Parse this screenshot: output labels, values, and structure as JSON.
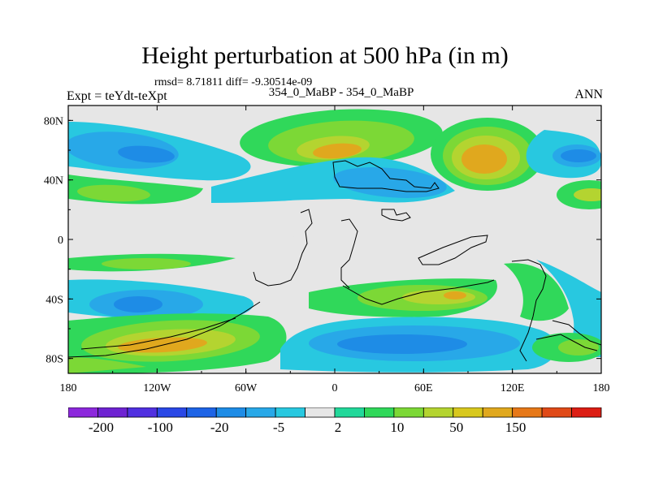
{
  "chart_data": {
    "type": "contour-map",
    "title": "Height perturbation at 500 hPa (in m)",
    "stats_text": "rmsd= 8.71811 diff= -9.30514e-09",
    "left_label": "Expt = teYdt-teXpt",
    "center_label": "354_0_MaBP - 354_0_MaBP",
    "right_label": "ANN",
    "x_ticks": [
      "180",
      "120W",
      "60W",
      "0",
      "60E",
      "120E",
      "180"
    ],
    "y_ticks": [
      "80N",
      "40N",
      "0",
      "40S",
      "80S"
    ],
    "xlim": [
      -180,
      180
    ],
    "ylim": [
      -90,
      90
    ],
    "colorbar_labels": [
      "-200",
      "-100",
      "-20",
      "-5",
      "2",
      "10",
      "50",
      "150"
    ],
    "levels": [
      -300,
      -200,
      -150,
      -100,
      -50,
      -20,
      -10,
      -5,
      -2,
      2,
      5,
      10,
      20,
      50,
      100,
      150,
      200
    ],
    "colors": {
      "background": "#ffffff",
      "zero_band": "#e6e6e6",
      "palette": [
        "#8c28dc",
        "#6e23d2",
        "#5030e0",
        "#2a48e6",
        "#1e64e6",
        "#1e8ce6",
        "#28a8e8",
        "#28c8e0",
        "#e6e6e6",
        "#22d89a",
        "#30d85a",
        "#7cd836",
        "#b4d430",
        "#d8c81e",
        "#e0a81e",
        "#e67818",
        "#e04a18",
        "#dc1e14"
      ]
    }
  }
}
